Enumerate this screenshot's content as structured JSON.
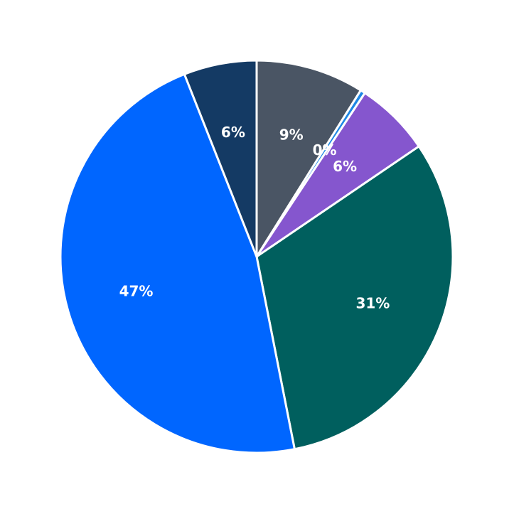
{
  "chart_data": {
    "type": "pie",
    "values": [
      8.9,
      0.4,
      6.2,
      31.4,
      47.1,
      6.0
    ],
    "value_labels": [
      "9%",
      "0%",
      "6%",
      "31%",
      "47%",
      "6%"
    ],
    "colors": [
      "#4a5564",
      "#1e88e5",
      "#8556ce",
      "#005f5e",
      "#0066ff",
      "#143a64"
    ]
  }
}
